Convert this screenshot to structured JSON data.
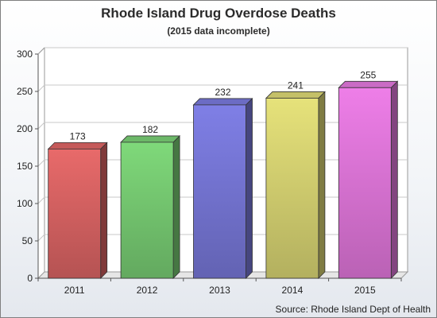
{
  "header": {
    "title": "Rhode Island Drug Overdose Deaths",
    "subtitle": "(2015 data incomplete)"
  },
  "footer": {
    "source": "Source: Rhode Island Dept of Health"
  },
  "chart_data": {
    "type": "bar",
    "title": "Rhode Island Drug Overdose Deaths",
    "subtitle": "(2015 data incomplete)",
    "categories": [
      "2011",
      "2012",
      "2013",
      "2014",
      "2015"
    ],
    "values": [
      173,
      182,
      232,
      241,
      255
    ],
    "data_labels": [
      "173",
      "182",
      "232",
      "241",
      "255"
    ],
    "xlabel": "",
    "ylabel": "",
    "ylim": [
      0,
      300
    ],
    "yticks": [
      0,
      50,
      100,
      150,
      200,
      250,
      300
    ],
    "grid": true,
    "style": "3d",
    "colors": [
      "#e86a6a",
      "#7fd97a",
      "#7f7fe6",
      "#e6e27a",
      "#ee7ee8"
    ]
  }
}
